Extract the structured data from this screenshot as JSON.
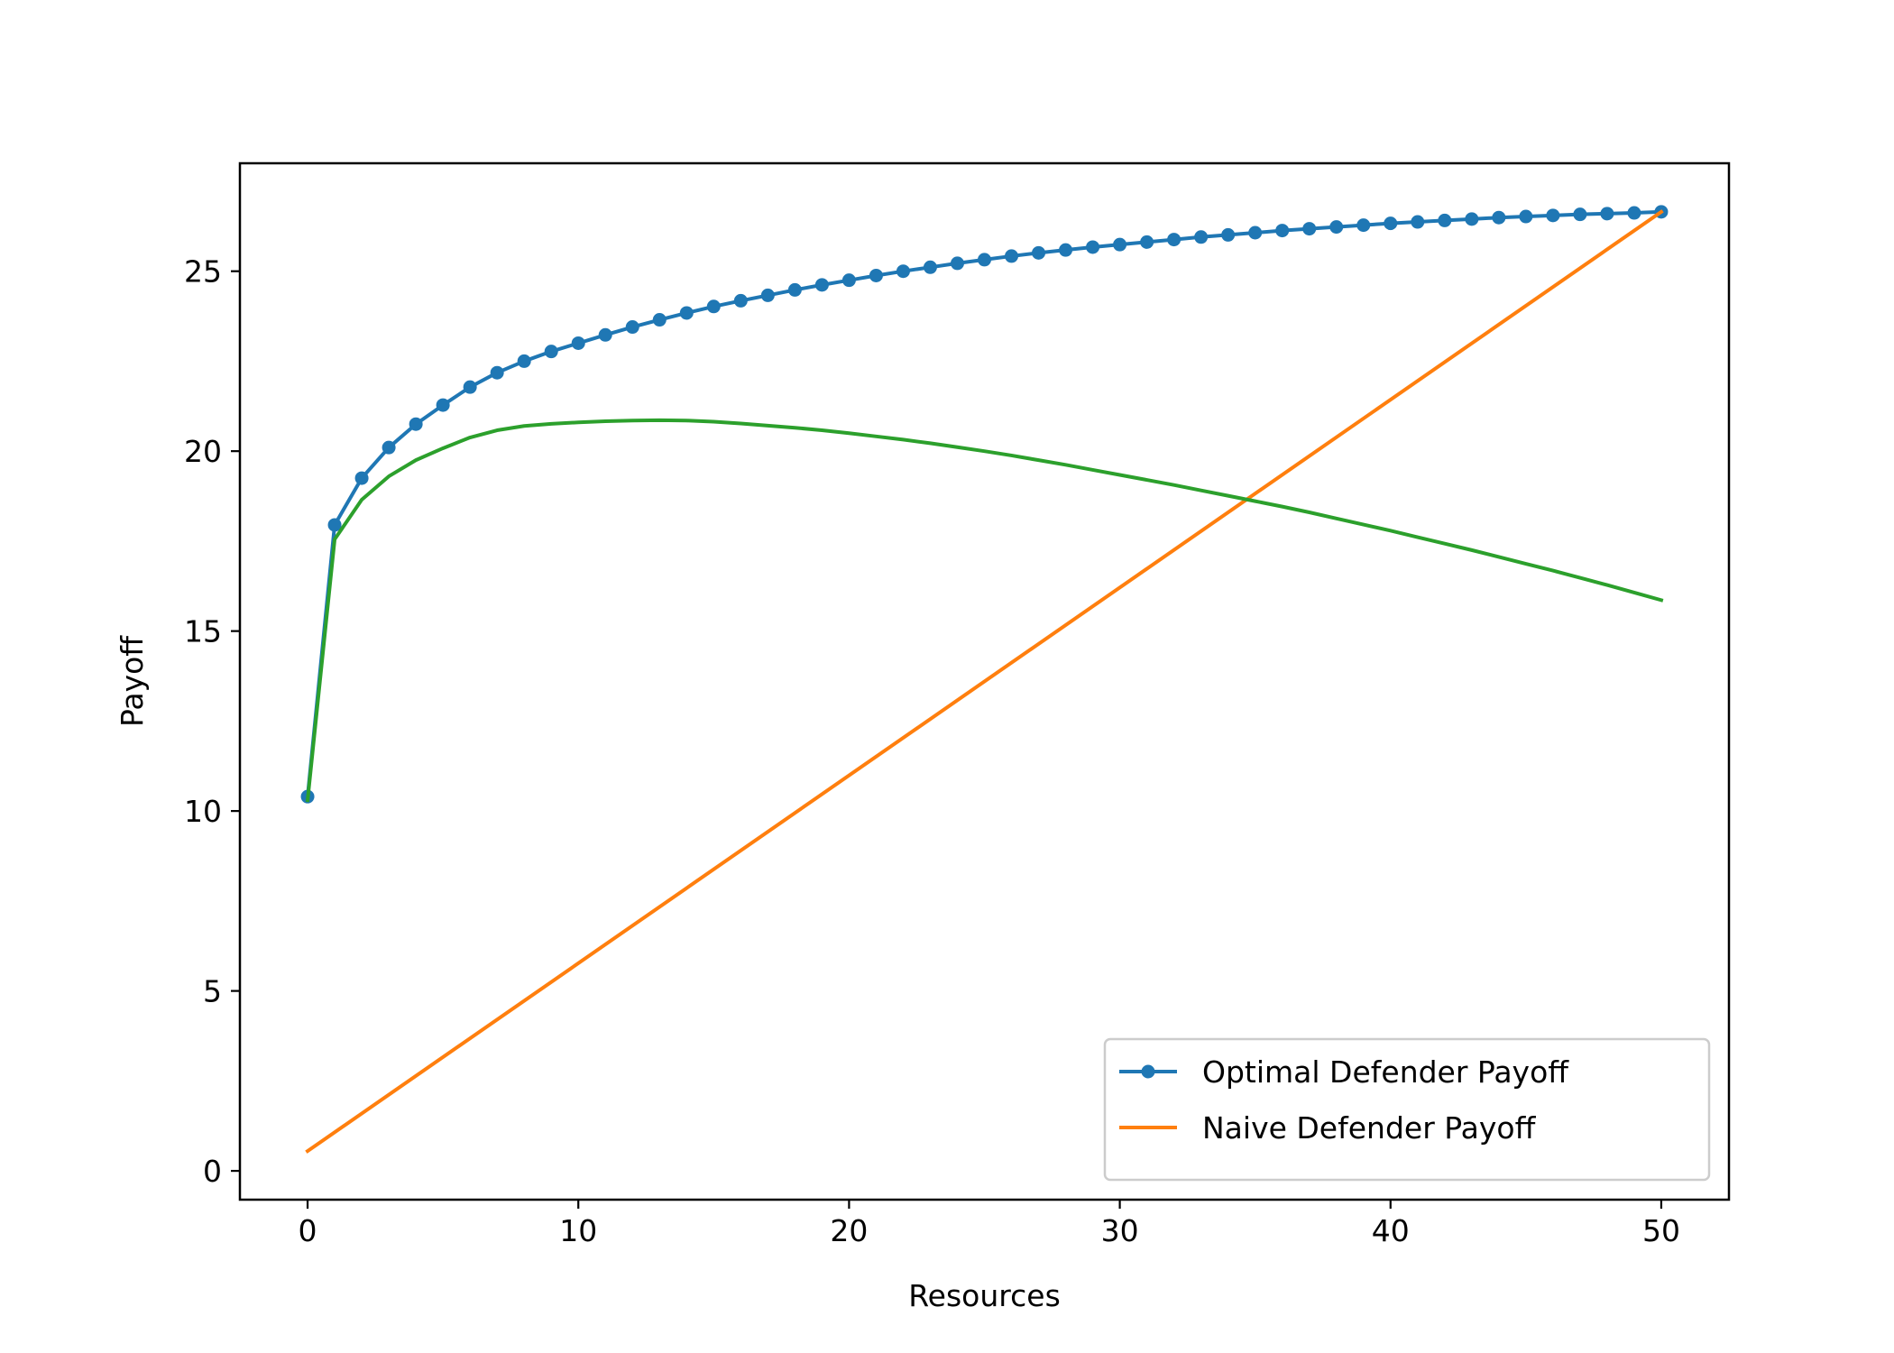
{
  "chart_data": {
    "type": "line",
    "title": "",
    "xlabel": "Resources",
    "ylabel": "Payoff",
    "xlim": [
      -2.5,
      52.5
    ],
    "ylim": [
      -0.8,
      28
    ],
    "xticks": [
      0,
      10,
      20,
      30,
      40,
      50
    ],
    "yticks": [
      0,
      5,
      10,
      15,
      20,
      25
    ],
    "grid": false,
    "legend_position": "lower-right",
    "series": [
      {
        "name": "Optimal Defender Payoff",
        "color": "#1f77b4",
        "marker": "circle",
        "show_in_legend": true,
        "x": [
          0,
          1,
          2,
          3,
          4,
          5,
          6,
          7,
          8,
          9,
          10,
          11,
          12,
          13,
          14,
          15,
          16,
          17,
          18,
          19,
          20,
          21,
          22,
          23,
          24,
          25,
          26,
          27,
          28,
          29,
          30,
          31,
          32,
          33,
          34,
          35,
          36,
          37,
          38,
          39,
          40,
          41,
          42,
          43,
          44,
          45,
          46,
          47,
          48,
          49,
          50
        ],
        "y": [
          10.4,
          17.95,
          19.25,
          20.1,
          20.75,
          21.28,
          21.78,
          22.18,
          22.5,
          22.77,
          23.0,
          23.23,
          23.45,
          23.65,
          23.84,
          24.02,
          24.18,
          24.33,
          24.48,
          24.62,
          24.75,
          24.88,
          25.0,
          25.11,
          25.22,
          25.32,
          25.42,
          25.51,
          25.59,
          25.67,
          25.74,
          25.81,
          25.88,
          25.95,
          26.01,
          26.07,
          26.13,
          26.18,
          26.23,
          26.28,
          26.33,
          26.37,
          26.41,
          26.45,
          26.49,
          26.52,
          26.55,
          26.58,
          26.6,
          26.62,
          26.65
        ]
      },
      {
        "name": "Naive Defender Payoff",
        "color": "#ff7f0e",
        "marker": "none",
        "show_in_legend": true,
        "x": [
          0,
          50
        ],
        "y": [
          0.55,
          26.65
        ]
      },
      {
        "color": "#2ca02c",
        "marker": "none",
        "show_in_legend": false,
        "x": [
          0,
          1,
          2,
          3,
          4,
          5,
          6,
          7,
          8,
          9,
          10,
          11,
          12,
          13,
          14,
          15,
          16,
          17,
          18,
          19,
          20,
          21,
          22,
          23,
          24,
          25,
          26,
          27,
          28,
          29,
          30,
          31,
          32,
          33,
          34,
          35,
          36,
          37,
          38,
          39,
          40,
          41,
          42,
          43,
          44,
          45,
          46,
          47,
          48,
          49,
          50
        ],
        "y": [
          10.3,
          17.55,
          18.65,
          19.3,
          19.75,
          20.08,
          20.38,
          20.58,
          20.7,
          20.76,
          20.8,
          20.83,
          20.85,
          20.86,
          20.85,
          20.82,
          20.77,
          20.71,
          20.65,
          20.58,
          20.5,
          20.41,
          20.32,
          20.22,
          20.11,
          20.0,
          19.88,
          19.75,
          19.62,
          19.48,
          19.34,
          19.2,
          19.06,
          18.91,
          18.76,
          18.61,
          18.46,
          18.3,
          18.13,
          17.96,
          17.79,
          17.61,
          17.43,
          17.25,
          17.06,
          16.87,
          16.68,
          16.48,
          16.28,
          16.07,
          15.86
        ]
      }
    ]
  }
}
